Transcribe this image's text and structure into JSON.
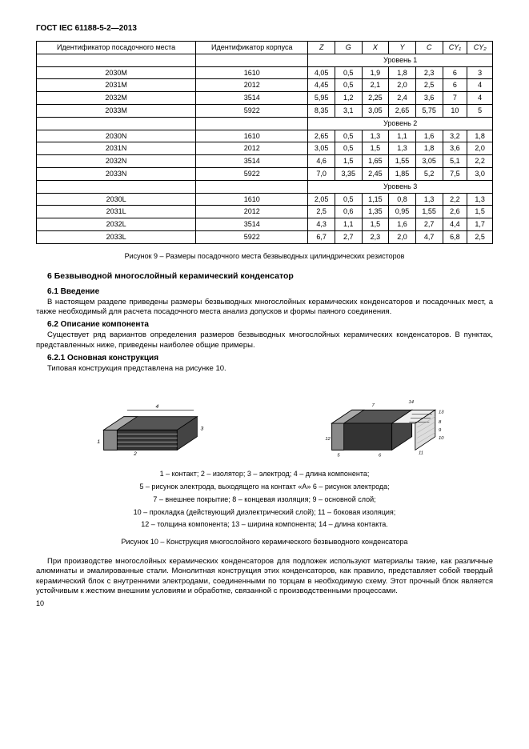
{
  "docHeader": "ГОСТ IEC 61188-5-2—2013",
  "table": {
    "headers": [
      "Идентификатор посадочного места",
      "Идентификатор корпуса",
      "Z",
      "G",
      "X",
      "Y",
      "C",
      "CY₁",
      "CY₂"
    ],
    "levels": [
      "Уровень 1",
      "Уровень 2",
      "Уровень 3"
    ],
    "data": {
      "l1": [
        [
          "2030M",
          "1610",
          "4,05",
          "0,5",
          "1,9",
          "1,8",
          "2,3",
          "6",
          "3"
        ],
        [
          "2031M",
          "2012",
          "4,45",
          "0,5",
          "2,1",
          "2,0",
          "2,5",
          "6",
          "4"
        ],
        [
          "2032M",
          "3514",
          "5,95",
          "1,2",
          "2,25",
          "2,4",
          "3,6",
          "7",
          "4"
        ],
        [
          "2033M",
          "5922",
          "8,35",
          "3,1",
          "3,05",
          "2,65",
          "5,75",
          "10",
          "5"
        ]
      ],
      "l2": [
        [
          "2030N",
          "1610",
          "2,65",
          "0,5",
          "1,3",
          "1,1",
          "1,6",
          "3,2",
          "1,8"
        ],
        [
          "2031N",
          "2012",
          "3,05",
          "0,5",
          "1,5",
          "1,3",
          "1,8",
          "3,6",
          "2,0"
        ],
        [
          "2032N",
          "3514",
          "4,6",
          "1,5",
          "1,65",
          "1,55",
          "3,05",
          "5,1",
          "2,2"
        ],
        [
          "2033N",
          "5922",
          "7,0",
          "3,35",
          "2,45",
          "1,85",
          "5,2",
          "7,5",
          "3,0"
        ]
      ],
      "l3": [
        [
          "2030L",
          "1610",
          "2,05",
          "0,5",
          "1,15",
          "0,8",
          "1,3",
          "2,2",
          "1,3"
        ],
        [
          "2031L",
          "2012",
          "2,5",
          "0,6",
          "1,35",
          "0,95",
          "1,55",
          "2,6",
          "1,5"
        ],
        [
          "2032L",
          "3514",
          "4,3",
          "1,1",
          "1,5",
          "1,6",
          "2,7",
          "4,4",
          "1,7"
        ],
        [
          "2033L",
          "5922",
          "6,7",
          "2,7",
          "2,3",
          "2,0",
          "4,7",
          "6,8",
          "2,5"
        ]
      ]
    }
  },
  "fig9caption": "Рисунок 9 – Размеры посадочного места безвыводных цилиндрических резисторов",
  "section6": "6 Безвыводной многослойный керамический конденсатор",
  "s61h": "6.1 Введение",
  "s61t": "В настоящем разделе приведены размеры безвыводных многослойных керамических конденсаторов и посадочных мест, а также необходимый для расчета посадочного места анализ допусков и формы паяного соединения.",
  "s62h": "6.2 Описание компонента",
  "s62t": "Существует ряд вариантов определения размеров безвыводных многослойных керамических конденсаторов. В пунктах, представленных ниже, приведены наиболее общие примеры.",
  "s621h": "6.2.1 Основная конструкция",
  "s621t": "Типовая конструкция представлена на рисунке 10.",
  "legend": [
    "1 – контакт; 2 – изолятор; 3 – электрод; 4 – длина компонента;",
    "5 – рисунок электрода, выходящего на контакт «А» 6 – рисунок электрода;",
    "7 – внешнее покрытие; 8 – концевая изоляция; 9 – основной слой;",
    "10 – прокладка (действующий диэлектрический слой); 11 – боковая изоляция;",
    "12 – толщина компонента; 13 – ширина компонента; 14 – длина контакта."
  ],
  "fig10caption": "Рисунок 10 – Конструкция многослойного керамического безвыводного конденсатора",
  "bottomText": "При производстве многослойных керамических конденсаторов для подложек используют материалы такие, как различные алюминаты и эмалированные стали. Монолитная конструкция этих конденсаторов, как правило, представляет собой твердый керамический блок с внутренними электродами, соединенными по торцам в необходимую схему. Этот прочный блок является устойчивым к жестким внешним условиям и обработке, связанной с производственными процессами.",
  "pageNum": "10",
  "colors": {
    "border": "#000000",
    "bg": "#ffffff",
    "text": "#000000"
  }
}
